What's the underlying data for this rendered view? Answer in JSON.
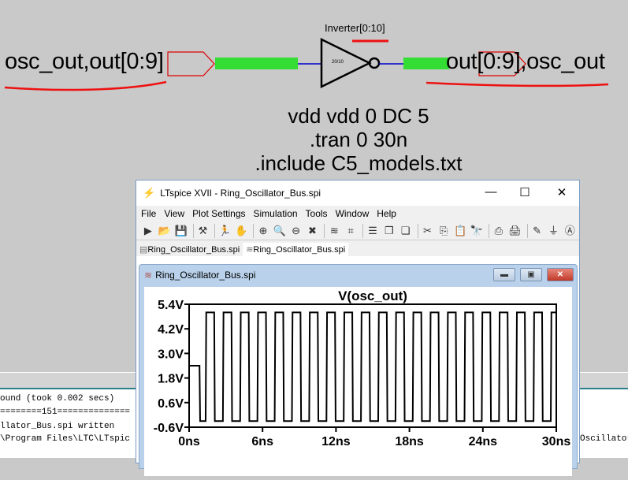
{
  "schematic": {
    "left_label": "osc_out,out[0:9]",
    "right_label": "out[0:9],osc_out",
    "instance_name": "Inverter[0:10]",
    "inverter_value": "20/10",
    "directives": [
      "vdd vdd 0 DC 5",
      ".tran 0 30n",
      ".include C5_models.txt"
    ],
    "colors": {
      "bus": "#33dd33",
      "wire": "#0000cc",
      "flag": "#dd0000",
      "annotation": "#ee1111"
    }
  },
  "console": {
    "lines": [
      "ound (took 0.002 secs)",
      "========151==============",
      "llator_Bus.spi written",
      "\\Program Files\\LTC\\LTspic"
    ],
    "right_text": "Oscillator"
  },
  "window": {
    "title": "LTspice XVII - Ring_Oscillator_Bus.spi",
    "minimize": "—",
    "maximize": "☐",
    "close": "✕",
    "menu": [
      "File",
      "View",
      "Plot Settings",
      "Simulation",
      "Tools",
      "Window",
      "Help"
    ],
    "toolbar": [
      {
        "name": "run-icon",
        "glyph": "▶"
      },
      {
        "name": "open-icon",
        "glyph": "📂"
      },
      {
        "name": "save-icon",
        "glyph": "💾"
      },
      "|",
      {
        "name": "hammer-icon",
        "glyph": "⚒"
      },
      "|",
      {
        "name": "running-man-icon",
        "glyph": "🏃"
      },
      {
        "name": "hand-icon",
        "glyph": "✋"
      },
      "|",
      {
        "name": "zoom-in-icon",
        "glyph": "⊕"
      },
      {
        "name": "zoom-icon",
        "glyph": "🔍"
      },
      {
        "name": "zoom-out-icon",
        "glyph": "⊖"
      },
      {
        "name": "zoom-cancel-icon",
        "glyph": "✖"
      },
      "|",
      {
        "name": "autorange-icon",
        "glyph": "≋"
      },
      {
        "name": "mark-icon",
        "glyph": "⌗"
      },
      "|",
      {
        "name": "tile-horizontal-icon",
        "glyph": "☰"
      },
      {
        "name": "cascade-icon",
        "glyph": "❐"
      },
      {
        "name": "tile-vertical-icon",
        "glyph": "❏"
      },
      "|",
      {
        "name": "cut-icon",
        "glyph": "✂"
      },
      {
        "name": "copy-icon",
        "glyph": "⎘"
      },
      {
        "name": "paste-icon",
        "glyph": "📋"
      },
      {
        "name": "find-icon",
        "glyph": "🔭"
      },
      "|",
      {
        "name": "print-preview-icon",
        "glyph": "⎙"
      },
      {
        "name": "print-icon",
        "glyph": "🖨"
      },
      "|",
      {
        "name": "pencil-icon",
        "glyph": "✎"
      },
      {
        "name": "ground-icon",
        "glyph": "⏚"
      },
      {
        "name": "label-icon",
        "glyph": "Ⓐ"
      }
    ],
    "tabs": [
      {
        "label": "Ring_Oscillator_Bus.spi",
        "icon": "netlist-icon",
        "active": false
      },
      {
        "label": "Ring_Oscillator_Bus.spi",
        "icon": "waveform-icon",
        "active": true
      }
    ],
    "plot_window_title": "Ring_Oscillator_Bus.spi"
  },
  "chart_data": {
    "type": "line",
    "title": "V(osc_out)",
    "xlim": [
      0,
      30
    ],
    "ylim": [
      -0.6,
      5.4
    ],
    "xticks": [
      "0ns",
      "6ns",
      "12ns",
      "18ns",
      "24ns",
      "30ns"
    ],
    "xtick_values": [
      0,
      6,
      12,
      18,
      24,
      30
    ],
    "yticks": [
      "5.4V",
      "4.2V",
      "3.0V",
      "1.8V",
      "0.6V",
      "-0.6V"
    ],
    "ytick_values": [
      5.4,
      4.2,
      3.0,
      1.8,
      0.6,
      -0.6
    ],
    "grid": false,
    "series": [
      {
        "points": [
          [
            0,
            2.4
          ],
          [
            0.85,
            2.4
          ],
          [
            0.9,
            -0.3
          ],
          [
            1.35,
            -0.3
          ],
          [
            1.4,
            5.0
          ],
          [
            2.05,
            5.0
          ],
          [
            2.1,
            -0.3
          ],
          [
            2.76,
            -0.3
          ],
          [
            2.81,
            5.0
          ],
          [
            3.46,
            5.0
          ],
          [
            3.51,
            -0.3
          ],
          [
            4.17,
            -0.3
          ],
          [
            4.22,
            5.0
          ],
          [
            4.87,
            5.0
          ],
          [
            4.92,
            -0.3
          ],
          [
            5.58,
            -0.3
          ],
          [
            5.63,
            5.0
          ],
          [
            6.28,
            5.0
          ],
          [
            6.33,
            -0.3
          ],
          [
            6.99,
            -0.3
          ],
          [
            7.04,
            5.0
          ],
          [
            7.69,
            5.0
          ],
          [
            7.74,
            -0.3
          ],
          [
            8.4,
            -0.3
          ],
          [
            8.45,
            5.0
          ],
          [
            9.1,
            5.0
          ],
          [
            9.15,
            -0.3
          ],
          [
            9.81,
            -0.3
          ],
          [
            9.86,
            5.0
          ],
          [
            10.51,
            5.0
          ],
          [
            10.56,
            -0.3
          ],
          [
            11.22,
            -0.3
          ],
          [
            11.27,
            5.0
          ],
          [
            11.92,
            5.0
          ],
          [
            11.97,
            -0.3
          ],
          [
            12.63,
            -0.3
          ],
          [
            12.68,
            5.0
          ],
          [
            13.33,
            5.0
          ],
          [
            13.38,
            -0.3
          ],
          [
            14.04,
            -0.3
          ],
          [
            14.09,
            5.0
          ],
          [
            14.74,
            5.0
          ],
          [
            14.79,
            -0.3
          ],
          [
            15.45,
            -0.3
          ],
          [
            15.5,
            5.0
          ],
          [
            16.15,
            5.0
          ],
          [
            16.2,
            -0.3
          ],
          [
            16.86,
            -0.3
          ],
          [
            16.91,
            5.0
          ],
          [
            17.56,
            5.0
          ],
          [
            17.61,
            -0.3
          ],
          [
            18.27,
            -0.3
          ],
          [
            18.32,
            5.0
          ],
          [
            18.97,
            5.0
          ],
          [
            19.02,
            -0.3
          ],
          [
            19.68,
            -0.3
          ],
          [
            19.73,
            5.0
          ],
          [
            20.38,
            5.0
          ],
          [
            20.43,
            -0.3
          ],
          [
            21.09,
            -0.3
          ],
          [
            21.14,
            5.0
          ],
          [
            21.79,
            5.0
          ],
          [
            21.84,
            -0.3
          ],
          [
            22.5,
            -0.3
          ],
          [
            22.55,
            5.0
          ],
          [
            23.2,
            5.0
          ],
          [
            23.25,
            -0.3
          ],
          [
            23.91,
            -0.3
          ],
          [
            23.96,
            5.0
          ],
          [
            24.61,
            5.0
          ],
          [
            24.66,
            -0.3
          ],
          [
            25.32,
            -0.3
          ],
          [
            25.37,
            5.0
          ],
          [
            26.02,
            5.0
          ],
          [
            26.07,
            -0.3
          ],
          [
            26.73,
            -0.3
          ],
          [
            26.78,
            5.0
          ],
          [
            27.43,
            5.0
          ],
          [
            27.48,
            -0.3
          ],
          [
            28.14,
            -0.3
          ],
          [
            28.19,
            5.0
          ],
          [
            28.84,
            5.0
          ],
          [
            28.89,
            -0.3
          ],
          [
            29.55,
            -0.3
          ],
          [
            29.6,
            5.0
          ],
          [
            30,
            5.0
          ]
        ],
        "color": "#000000"
      }
    ]
  }
}
